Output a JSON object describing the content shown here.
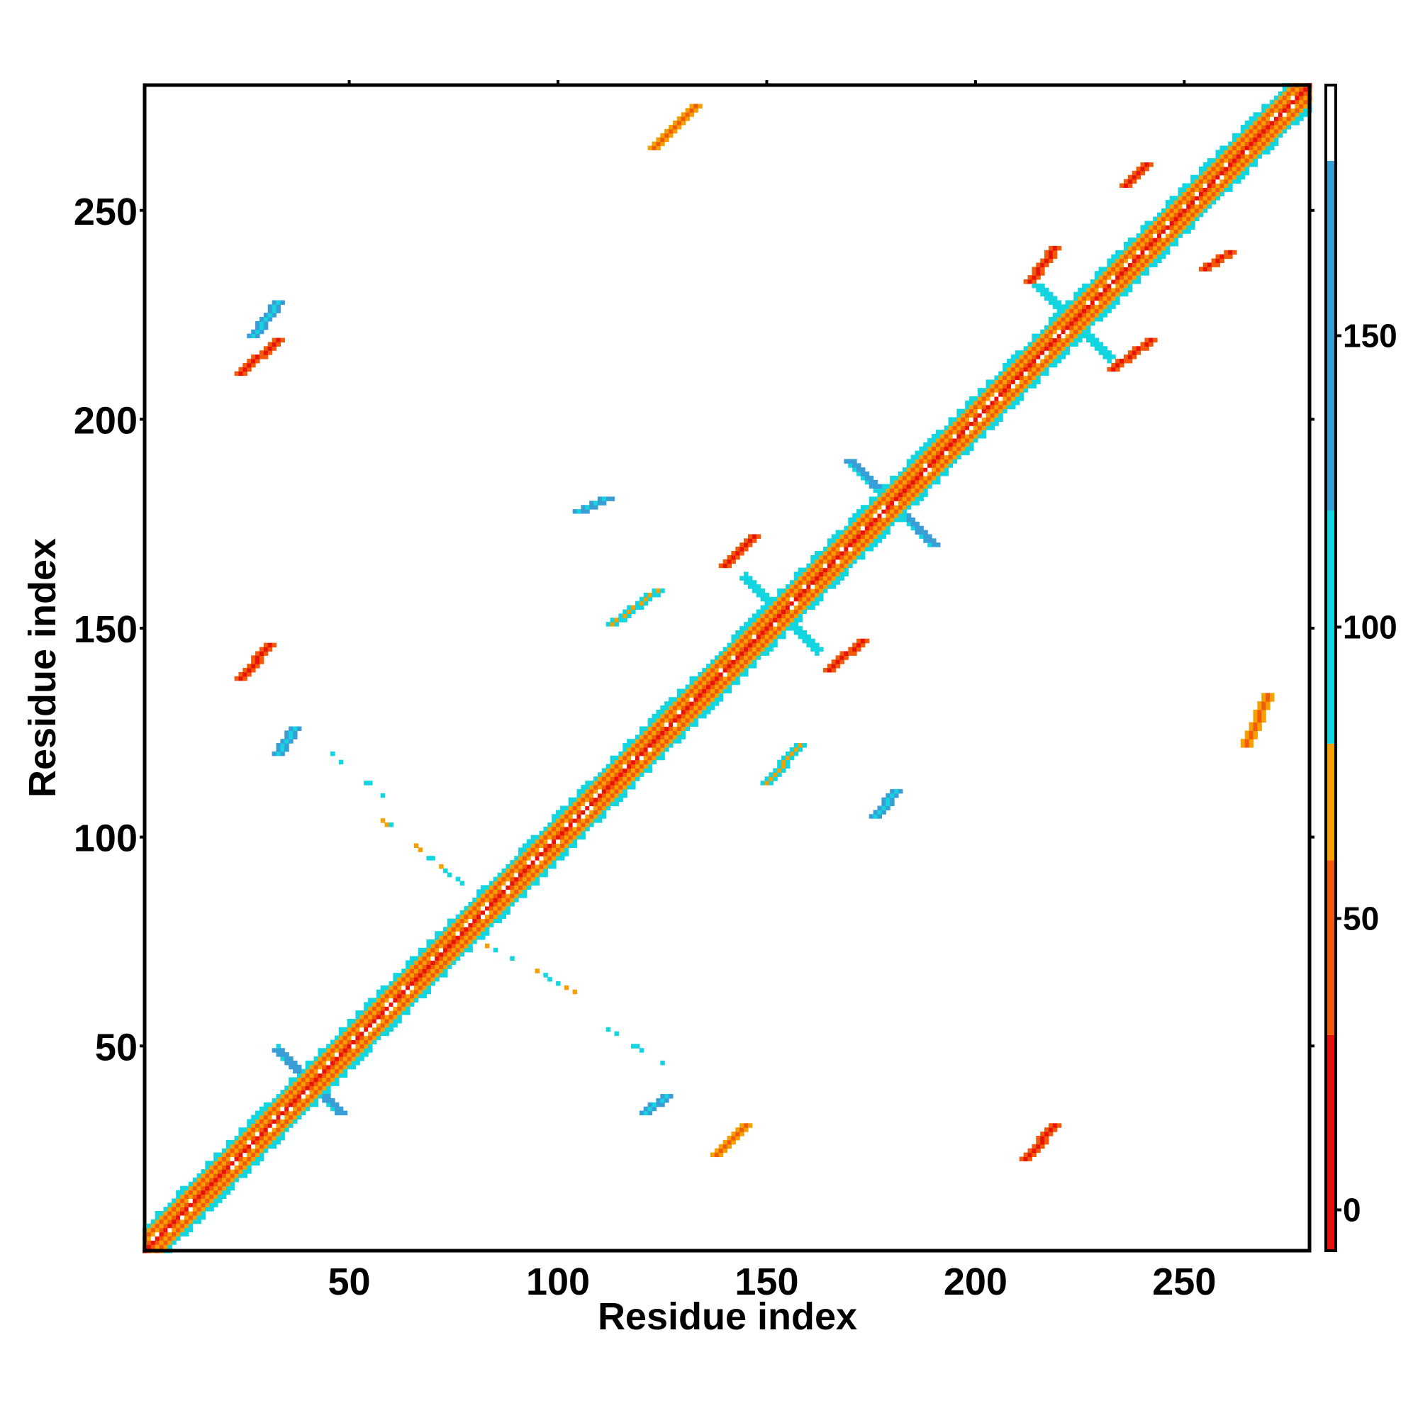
{
  "chart_data": {
    "type": "heatmap",
    "title": "",
    "xlabel": "Residue index",
    "ylabel": "Residue index",
    "xlim": [
      1,
      280
    ],
    "ylim": [
      1,
      280
    ],
    "xticks": [
      50,
      100,
      150,
      200,
      250
    ],
    "yticks": [
      50,
      100,
      150,
      200,
      250
    ],
    "colorbar": {
      "ticks": [
        0,
        50,
        100,
        150
      ],
      "range": [
        -7,
        193
      ],
      "bands": [
        {
          "from": -7,
          "to": 30,
          "color": "#e8120a"
        },
        {
          "from": 30,
          "to": 60,
          "color": "#f05a0a"
        },
        {
          "from": 60,
          "to": 80,
          "color": "#f5a000"
        },
        {
          "from": 80,
          "to": 120,
          "color": "#12d5e0"
        },
        {
          "from": 120,
          "to": 180,
          "color": "#3a9ed6"
        },
        {
          "from": 180,
          "to": 193,
          "color": "#ffffff"
        }
      ]
    },
    "diagonal_band": {
      "from": 1,
      "to": 280,
      "half_width": 6
    },
    "clusters": [
      {
        "x": [
          24,
          33
        ],
        "y": [
          211,
          219
        ],
        "value": 10,
        "dir": "parallel"
      },
      {
        "x": [
          24,
          31
        ],
        "y": [
          138,
          146
        ],
        "value": 10,
        "dir": "parallel"
      },
      {
        "x": [
          33,
          37
        ],
        "y": [
          120,
          126
        ],
        "value": 100,
        "dir": "parallel"
      },
      {
        "x": [
          213,
          219
        ],
        "y": [
          233,
          241
        ],
        "value": 10,
        "dir": "parallel"
      },
      {
        "x": [
          233,
          242
        ],
        "y": [
          212,
          219
        ],
        "value": 10,
        "dir": "parallel"
      },
      {
        "x": [
          236,
          241
        ],
        "y": [
          256,
          261
        ],
        "value": 10,
        "dir": "parallel"
      },
      {
        "x": [
          255,
          261
        ],
        "y": [
          236,
          240
        ],
        "value": 10,
        "dir": "parallel"
      },
      {
        "x": [
          140,
          147
        ],
        "y": [
          165,
          172
        ],
        "value": 10,
        "dir": "parallel"
      },
      {
        "x": [
          165,
          173
        ],
        "y": [
          140,
          147
        ],
        "value": 10,
        "dir": "parallel"
      },
      {
        "x": [
          138,
          145
        ],
        "y": [
          24,
          31
        ],
        "value": 40,
        "dir": "parallel"
      },
      {
        "x": [
          212,
          219
        ],
        "y": [
          23,
          31
        ],
        "value": 10,
        "dir": "parallel"
      },
      {
        "x": [
          170,
          190
        ],
        "y": [
          170,
          190
        ],
        "value": 140,
        "dir": "cross"
      },
      {
        "x": [
          33,
          48
        ],
        "y": [
          35,
          48
        ],
        "value": 140,
        "dir": "cross"
      },
      {
        "x": [
          145,
          162
        ],
        "y": [
          145,
          162
        ],
        "value": 110,
        "dir": "cross"
      },
      {
        "x": [
          215,
          232
        ],
        "y": [
          215,
          232
        ],
        "value": 110,
        "dir": "cross"
      },
      {
        "x": [
          113,
          124
        ],
        "y": [
          151,
          159
        ],
        "value": 60,
        "dir": "parallel"
      },
      {
        "x": [
          150,
          158
        ],
        "y": [
          113,
          122
        ],
        "value": 60,
        "dir": "parallel"
      },
      {
        "x": [
          105,
          112
        ],
        "y": [
          178,
          181
        ],
        "value": 100,
        "dir": "parallel"
      },
      {
        "x": [
          176,
          181
        ],
        "y": [
          105,
          111
        ],
        "value": 100,
        "dir": "parallel"
      },
      {
        "x": [
          121,
          126
        ],
        "y": [
          34,
          38
        ],
        "value": 100,
        "dir": "parallel"
      },
      {
        "x": [
          27,
          33
        ],
        "y": [
          220,
          228
        ],
        "value": 100,
        "dir": "parallel"
      },
      {
        "x": [
          265,
          270
        ],
        "y": [
          122,
          134
        ],
        "value": 40,
        "dir": "parallel"
      },
      {
        "x": [
          123,
          133
        ],
        "y": [
          265,
          275
        ],
        "value": 40,
        "dir": "parallel"
      }
    ],
    "scatter_lines": [
      {
        "x": [
          82,
          105
        ],
        "y": [
          75,
          62
        ],
        "value": 100
      },
      {
        "x": [
          57,
          82
        ],
        "y": [
          105,
          85
        ],
        "value": 100
      },
      {
        "x": [
          45,
          58
        ],
        "y": [
          121,
          110
        ],
        "value": 100
      },
      {
        "x": [
          110,
          125
        ],
        "y": [
          55,
          46
        ],
        "value": 100
      }
    ]
  }
}
